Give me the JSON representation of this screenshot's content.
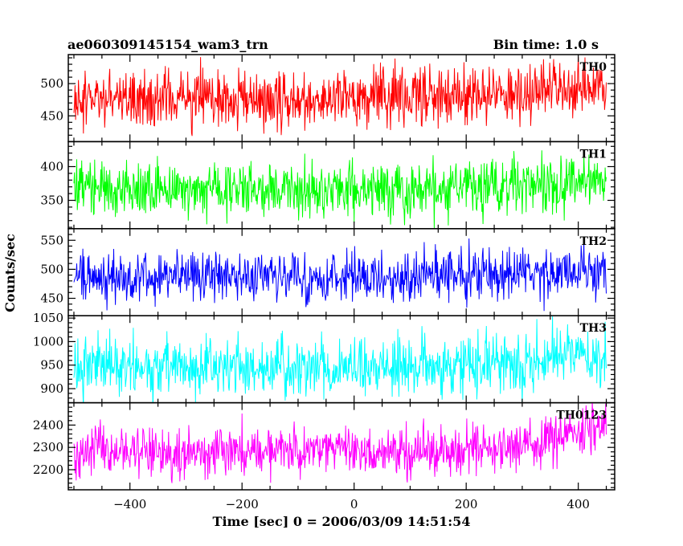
{
  "chart_data": {
    "type": "line",
    "title": "ae060309145154_wam3_trn",
    "subtitle": "Bin time: 1.0 s",
    "xlabel": "Time [sec] 0 = 2006/03/09 14:51:54",
    "ylabel": "Counts/sec",
    "xlim": [
      -510,
      465
    ],
    "x_ticks": [
      -400,
      -200,
      0,
      200,
      400
    ],
    "x_tick_labels": [
      "−400",
      "−200",
      "0",
      "200",
      "400"
    ],
    "x_range": [
      -500,
      450
    ],
    "bin_time": 1.0,
    "grid": false,
    "panels": [
      {
        "name": "TH0",
        "color": "#ff0000",
        "ylim": [
          410,
          545
        ],
        "y_ticks": [
          450,
          500
        ],
        "trend": [
          [
            -500,
            475
          ],
          [
            100,
            478
          ],
          [
            300,
            485
          ],
          [
            450,
            497
          ]
        ],
        "noise_sd": 23
      },
      {
        "name": "TH1",
        "color": "#00ff00",
        "ylim": [
          308,
          437
        ],
        "y_ticks": [
          350,
          400
        ],
        "trend": [
          [
            -500,
            365
          ],
          [
            100,
            366
          ],
          [
            300,
            370
          ],
          [
            450,
            380
          ]
        ],
        "noise_sd": 20
      },
      {
        "name": "TH2",
        "color": "#0000ff",
        "ylim": [
          420,
          570
        ],
        "y_ticks": [
          450,
          500,
          550
        ],
        "trend": [
          [
            -500,
            488
          ],
          [
            100,
            487
          ],
          [
            300,
            490
          ],
          [
            450,
            495
          ]
        ],
        "noise_sd": 22
      },
      {
        "name": "TH3",
        "color": "#00ffff",
        "ylim": [
          870,
          1055
        ],
        "y_ticks": [
          900,
          950,
          1000,
          1050
        ],
        "trend": [
          [
            -500,
            945
          ],
          [
            100,
            948
          ],
          [
            300,
            955
          ],
          [
            450,
            975
          ]
        ],
        "noise_sd": 32
      },
      {
        "name": "TH0123",
        "color": "#ff00ff",
        "ylim": [
          2110,
          2500
        ],
        "y_ticks": [
          2200,
          2300,
          2400
        ],
        "trend": [
          [
            -500,
            2280
          ],
          [
            100,
            2285
          ],
          [
            300,
            2300
          ],
          [
            450,
            2410
          ]
        ],
        "noise_sd": 55
      }
    ]
  }
}
